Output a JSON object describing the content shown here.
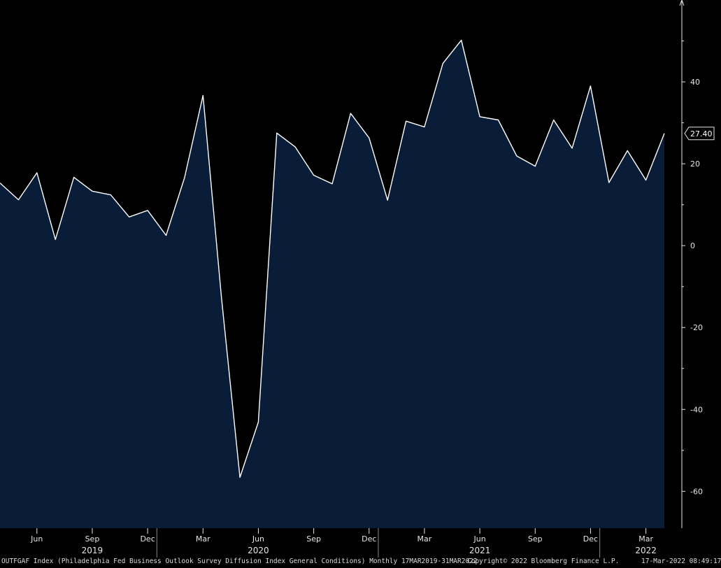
{
  "chart_data": {
    "type": "area",
    "series": [
      {
        "values": [
          {
            "x": "2019-04",
            "y": 15.3
          },
          {
            "x": "2019-05",
            "y": 11.2
          },
          {
            "x": "2019-06",
            "y": 17.8
          },
          {
            "x": "2019-07",
            "y": 1.5
          },
          {
            "x": "2019-08",
            "y": 16.7
          },
          {
            "x": "2019-09",
            "y": 13.3
          },
          {
            "x": "2019-10",
            "y": 12.4
          },
          {
            "x": "2019-11",
            "y": 7.0
          },
          {
            "x": "2019-12",
            "y": 8.6
          },
          {
            "x": "2020-01",
            "y": 2.5
          },
          {
            "x": "2020-02",
            "y": 16.6
          },
          {
            "x": "2020-03",
            "y": 36.7
          },
          {
            "x": "2020-04",
            "y": -12.7
          },
          {
            "x": "2020-05",
            "y": -56.6
          },
          {
            "x": "2020-06",
            "y": -43.1
          },
          {
            "x": "2020-07",
            "y": 27.5
          },
          {
            "x": "2020-08",
            "y": 24.1
          },
          {
            "x": "2020-09",
            "y": 17.2
          },
          {
            "x": "2020-10",
            "y": 15.1
          },
          {
            "x": "2020-11",
            "y": 32.3
          },
          {
            "x": "2020-12",
            "y": 26.3
          },
          {
            "x": "2021-01",
            "y": 11.1
          },
          {
            "x": "2021-02",
            "y": 30.4
          },
          {
            "x": "2021-03",
            "y": 29.0
          },
          {
            "x": "2021-04",
            "y": 44.5
          },
          {
            "x": "2021-05",
            "y": 50.2
          },
          {
            "x": "2021-06",
            "y": 31.5
          },
          {
            "x": "2021-07",
            "y": 30.7
          },
          {
            "x": "2021-08",
            "y": 21.9
          },
          {
            "x": "2021-09",
            "y": 19.4
          },
          {
            "x": "2021-10",
            "y": 30.7
          },
          {
            "x": "2021-11",
            "y": 23.8
          },
          {
            "x": "2021-12",
            "y": 39.0
          },
          {
            "x": "2022-01",
            "y": 15.4
          },
          {
            "x": "2022-02",
            "y": 23.2
          },
          {
            "x": "2022-03",
            "y": 16.0
          },
          {
            "x": "2022-04",
            "y": 27.4
          }
        ]
      }
    ],
    "last_value_label": "27.40",
    "ylim": [
      -69,
      60
    ],
    "y_ticks": [
      -60,
      -40,
      -20,
      0,
      20,
      40
    ],
    "y_tick_labels": [
      "-60",
      "-40",
      "-20",
      "0",
      "20",
      "40"
    ],
    "x_ticks": [
      {
        "x": "2019-06",
        "label": "Jun"
      },
      {
        "x": "2019-09",
        "label": "Sep"
      },
      {
        "x": "2019-12",
        "label": "Dec"
      },
      {
        "x": "2020-03",
        "label": "Mar"
      },
      {
        "x": "2020-06",
        "label": "Jun"
      },
      {
        "x": "2020-09",
        "label": "Sep"
      },
      {
        "x": "2020-12",
        "label": "Dec"
      },
      {
        "x": "2021-03",
        "label": "Mar"
      },
      {
        "x": "2021-06",
        "label": "Jun"
      },
      {
        "x": "2021-09",
        "label": "Sep"
      },
      {
        "x": "2021-12",
        "label": "Dec"
      },
      {
        "x": "2022-03",
        "label": "Mar"
      }
    ],
    "year_labels": [
      {
        "x": "2019-09",
        "label": "2019"
      },
      {
        "x": "2020-06",
        "label": "2020"
      },
      {
        "x": "2021-06",
        "label": "2021"
      },
      {
        "x": "2022-03",
        "label": "2022"
      }
    ],
    "grid": false,
    "colors": {
      "background": "#000000",
      "area_fill": "#0a1d38",
      "line": "#ffffff",
      "text": "#e6e6e6"
    }
  },
  "footer": {
    "description": "OUTFGAF Index (Philadelphia Fed Business Outlook Survey Diffusion Index General Conditions)  Monthly 17MAR2019-31MAR2022",
    "copyright": "Copyright© 2022 Bloomberg Finance L.P.",
    "timestamp": "17-Mar-2022 08:49:17"
  }
}
